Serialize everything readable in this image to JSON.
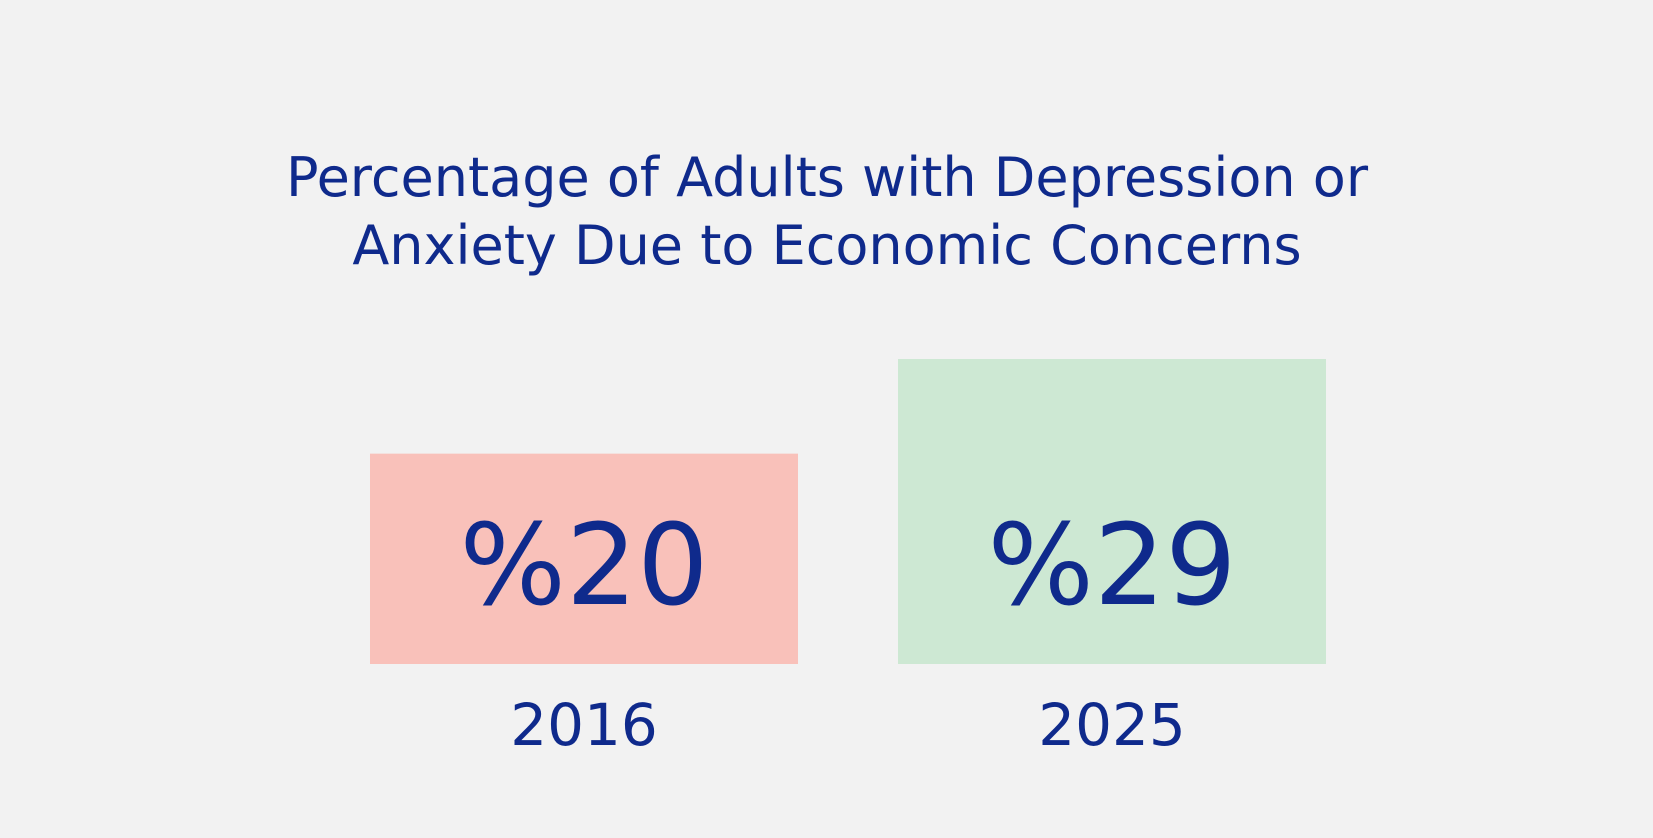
{
  "chart_data": {
    "type": "bar",
    "title_lines": [
      "Percentage of Adults with Depression or",
      "Anxiety Due to Economic Concerns"
    ],
    "categories": [
      "2016",
      "2025"
    ],
    "values": [
      20,
      29
    ],
    "value_labels": [
      "%20",
      "%29"
    ],
    "bar_colors": [
      "#f9c1ba",
      "#cde8d3"
    ],
    "text_color": "#0f2a8c",
    "ylim": [
      0,
      29
    ],
    "grid": false,
    "legend": "none"
  }
}
